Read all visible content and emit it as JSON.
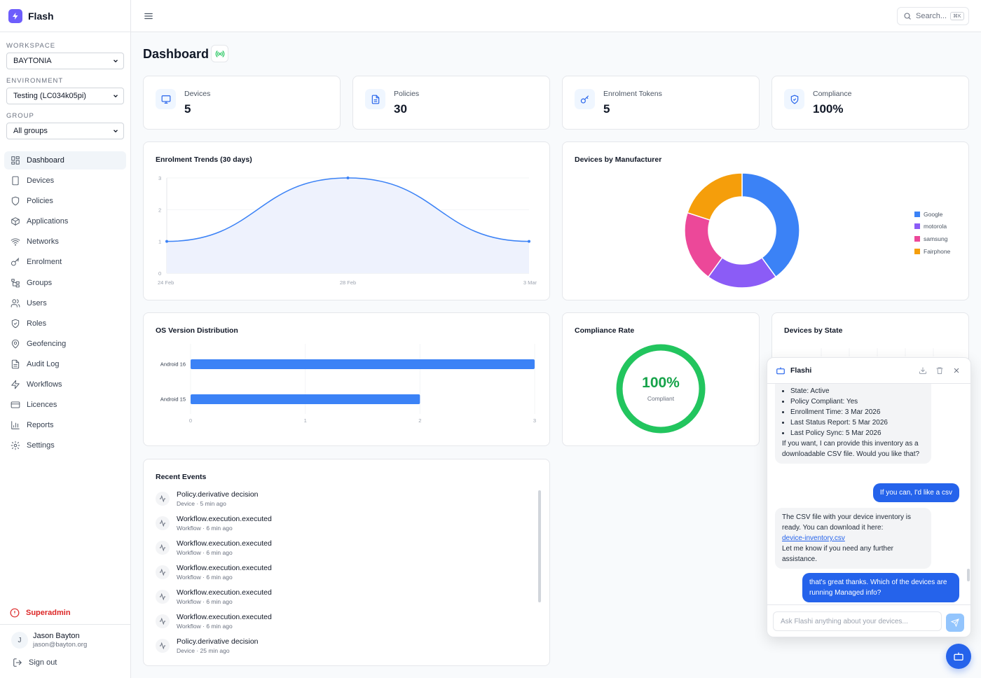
{
  "brand": {
    "name": "Flash"
  },
  "sidebar": {
    "workspace": {
      "label": "WORKSPACE",
      "value": "BAYTONIA"
    },
    "environment": {
      "label": "ENVIRONMENT",
      "value": "Testing (LC034k05pi)"
    },
    "group": {
      "label": "GROUP",
      "value": "All groups"
    },
    "nav": [
      {
        "label": "Dashboard",
        "icon": "grid-icon"
      },
      {
        "label": "Devices",
        "icon": "device-icon"
      },
      {
        "label": "Policies",
        "icon": "shield-icon"
      },
      {
        "label": "Applications",
        "icon": "package-icon"
      },
      {
        "label": "Networks",
        "icon": "wifi-icon"
      },
      {
        "label": "Enrolment",
        "icon": "key-icon"
      },
      {
        "label": "Groups",
        "icon": "hierarchy-icon"
      },
      {
        "label": "Users",
        "icon": "users-icon"
      },
      {
        "label": "Roles",
        "icon": "shield-check-icon"
      },
      {
        "label": "Geofencing",
        "icon": "map-pin-icon"
      },
      {
        "label": "Audit Log",
        "icon": "file-text-icon"
      },
      {
        "label": "Workflows",
        "icon": "zap-icon"
      },
      {
        "label": "Licences",
        "icon": "credit-card-icon"
      },
      {
        "label": "Reports",
        "icon": "bar-chart-icon"
      },
      {
        "label": "Settings",
        "icon": "gear-icon"
      }
    ],
    "superadmin": "Superadmin",
    "user": {
      "initial": "J",
      "name": "Jason Bayton",
      "email": "jason@bayton.org"
    },
    "signout": "Sign out"
  },
  "topbar": {
    "search_placeholder": "Search...",
    "shortcut": "⌘K"
  },
  "page": {
    "title": "Dashboard"
  },
  "stats": [
    {
      "label": "Devices",
      "value": "5",
      "icon": "monitor-icon"
    },
    {
      "label": "Policies",
      "value": "30",
      "icon": "file-icon"
    },
    {
      "label": "Enrolment Tokens",
      "value": "5",
      "icon": "key-icon"
    },
    {
      "label": "Compliance",
      "value": "100%",
      "icon": "shield-check-icon"
    }
  ],
  "cards": {
    "trends": "Enrolment Trends (30 days)",
    "manufacturer": "Devices by Manufacturer",
    "os": "OS Version Distribution",
    "compliance": "Compliance Rate",
    "state": "Devices by State",
    "events": "Recent Events"
  },
  "chart_data": [
    {
      "type": "area",
      "title": "Enrolment Trends (30 days)",
      "x": [
        "24 Feb",
        "28 Feb",
        "3 Mar"
      ],
      "values": [
        1,
        3,
        1
      ],
      "ylim": [
        0,
        3
      ],
      "yticks": [
        "0",
        "1",
        "2",
        "3"
      ]
    },
    {
      "type": "pie",
      "title": "Devices by Manufacturer",
      "categories": [
        "Google",
        "motorola",
        "samsung",
        "Fairphone"
      ],
      "values": [
        2,
        1,
        1,
        1
      ],
      "colors": [
        "#3b82f6",
        "#8b5cf6",
        "#ec4899",
        "#f59e0b"
      ],
      "legend": "right"
    },
    {
      "type": "bar",
      "title": "OS Version Distribution",
      "categories": [
        "Android 16",
        "Android 15"
      ],
      "values": [
        3,
        2
      ],
      "xlim": [
        0,
        3
      ],
      "xticks": [
        "0",
        "1",
        "2",
        "3"
      ],
      "orientation": "horizontal"
    }
  ],
  "compliance_rate": {
    "value": "100%",
    "label": "Compliant",
    "fraction": 1.0
  },
  "events": [
    {
      "title": "Policy.derivative decision",
      "sub": "Device · 5 min ago"
    },
    {
      "title": "Workflow.execution.executed",
      "sub": "Workflow · 6 min ago"
    },
    {
      "title": "Workflow.execution.executed",
      "sub": "Workflow · 6 min ago"
    },
    {
      "title": "Workflow.execution.executed",
      "sub": "Workflow · 6 min ago"
    },
    {
      "title": "Workflow.execution.executed",
      "sub": "Workflow · 6 min ago"
    },
    {
      "title": "Workflow.execution.executed",
      "sub": "Workflow · 6 min ago"
    },
    {
      "title": "Policy.derivative decision",
      "sub": "Device · 25 min ago"
    }
  ],
  "chat": {
    "title": "Flashi",
    "msg1_items": [
      "State: Active",
      "Policy Compliant: Yes",
      "Enrollment Time: 3 Mar 2026",
      "Last Status Report: 5 Mar 2026",
      "Last Policy Sync: 5 Mar 2026"
    ],
    "msg1_tail": "If you want, I can provide this inventory as a downloadable CSV file. Would you like that?",
    "user1": "If you can, I'd like a csv",
    "msg2_intro": "The CSV file with your device inventory is ready. You can download it here:",
    "msg2_link": "device-inventory.csv",
    "msg2_tail": "Let me know if you need any further assistance.",
    "user2": "that's great thanks. Which of the devices are running Managed info?",
    "input_placeholder": "Ask Flashi anything about your devices..."
  },
  "colors": {
    "accent": "#2563eb",
    "success": "#22c55e",
    "brand": "#6d5dfc"
  }
}
